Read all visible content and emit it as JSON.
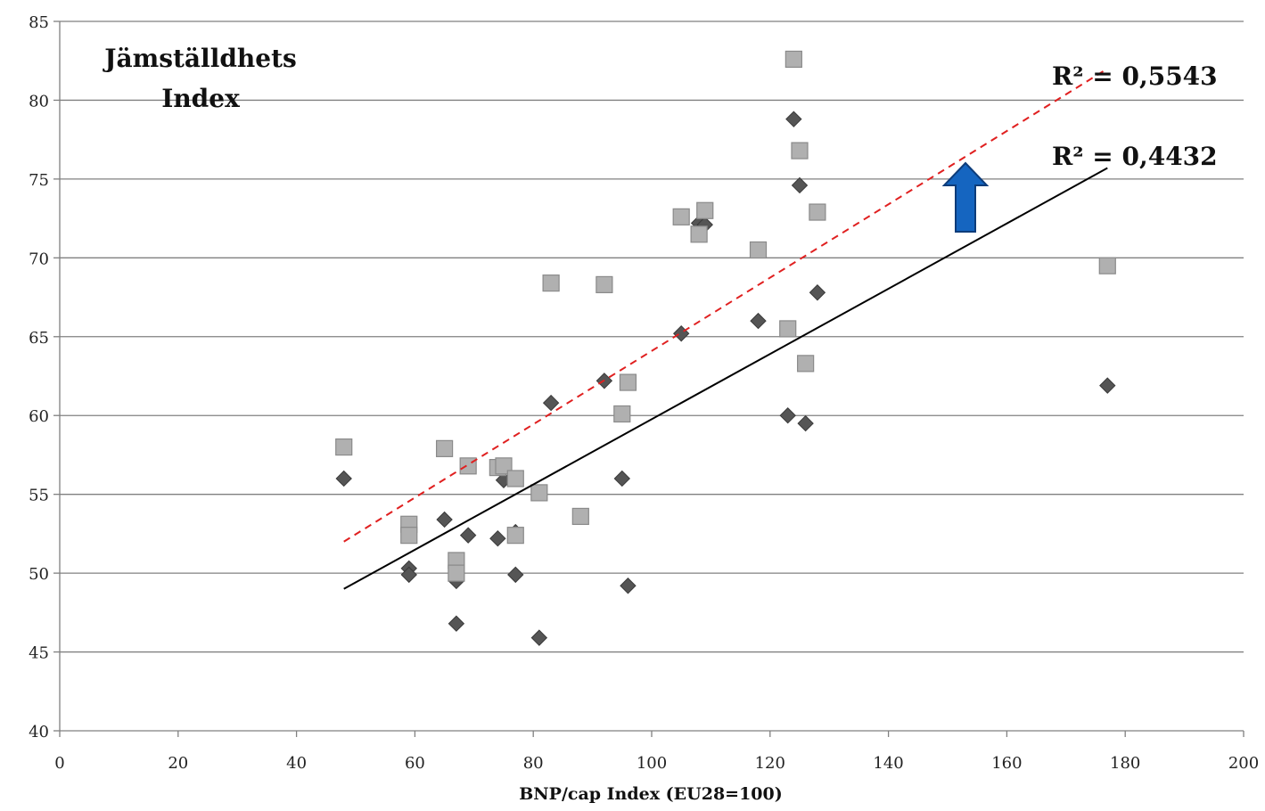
{
  "chart_data": {
    "type": "scatter",
    "title": "Jämställdhets Index",
    "title_lines": [
      "Jämställdhets",
      "Index"
    ],
    "xlabel": "BNP/cap Index (EU28=100)",
    "ylabel": "",
    "xlim": [
      0,
      200
    ],
    "ylim": [
      40,
      85
    ],
    "x_ticks": [
      0,
      20,
      40,
      60,
      80,
      100,
      120,
      140,
      160,
      180,
      200
    ],
    "y_ticks": [
      40,
      45,
      50,
      55,
      60,
      65,
      70,
      75,
      80,
      85
    ],
    "grid": "horizontal",
    "series": [
      {
        "marker": "diamond",
        "color": "#555555",
        "points": [
          [
            48,
            56.0
          ],
          [
            59,
            50.3
          ],
          [
            59,
            49.9
          ],
          [
            65,
            53.4
          ],
          [
            67,
            49.5
          ],
          [
            67,
            46.8
          ],
          [
            69,
            52.4
          ],
          [
            74,
            52.2
          ],
          [
            75,
            55.9
          ],
          [
            77,
            52.6
          ],
          [
            77,
            49.9
          ],
          [
            81,
            45.9
          ],
          [
            83,
            60.8
          ],
          [
            92,
            62.2
          ],
          [
            95,
            56.0
          ],
          [
            96,
            49.2
          ],
          [
            105,
            65.2
          ],
          [
            108,
            72.2
          ],
          [
            109,
            72.1
          ],
          [
            118,
            66.0
          ],
          [
            123,
            60.0
          ],
          [
            124,
            78.8
          ],
          [
            125,
            74.6
          ],
          [
            126,
            59.5
          ],
          [
            128,
            67.8
          ],
          [
            177,
            61.9
          ]
        ]
      },
      {
        "marker": "square",
        "color": "#b0b0b0",
        "points": [
          [
            48,
            58.0
          ],
          [
            59,
            53.1
          ],
          [
            59,
            52.4
          ],
          [
            65,
            57.9
          ],
          [
            67,
            50.8
          ],
          [
            67,
            50.0
          ],
          [
            69,
            56.8
          ],
          [
            74,
            56.7
          ],
          [
            75,
            56.8
          ],
          [
            77,
            56.0
          ],
          [
            77,
            52.4
          ],
          [
            81,
            55.1
          ],
          [
            83,
            68.4
          ],
          [
            88,
            53.6
          ],
          [
            92,
            68.3
          ],
          [
            95,
            60.1
          ],
          [
            96,
            62.1
          ],
          [
            105,
            72.6
          ],
          [
            108,
            71.5
          ],
          [
            109,
            73.0
          ],
          [
            118,
            70.5
          ],
          [
            123,
            65.5
          ],
          [
            124,
            82.6
          ],
          [
            125,
            76.8
          ],
          [
            126,
            63.3
          ],
          [
            128,
            72.9
          ],
          [
            177,
            69.5
          ]
        ]
      }
    ],
    "trendlines": [
      {
        "style": "dashed",
        "color": "#e02020",
        "from": [
          48,
          52.0
        ],
        "to": [
          177,
          82.0
        ],
        "label": "R² = 0,5543"
      },
      {
        "style": "solid",
        "color": "#000000",
        "from": [
          48,
          49.0
        ],
        "to": [
          177,
          75.7
        ],
        "label": "R² = 0,4432"
      }
    ],
    "annotations": [
      {
        "type": "arrow-up",
        "color": "#1565c0"
      }
    ]
  }
}
